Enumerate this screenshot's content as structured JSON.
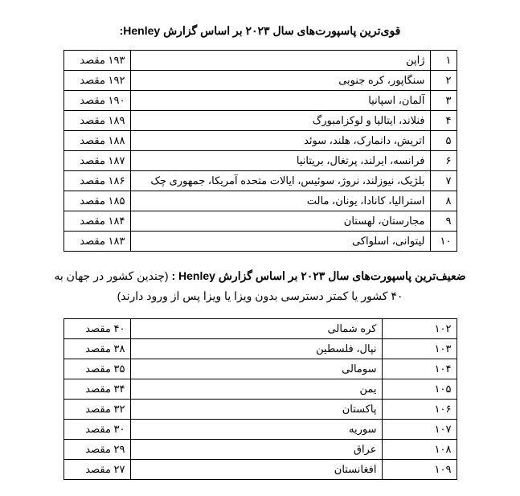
{
  "title_strong": "قوی‌ترین پاسپورت‌های سال ۲۰۲۳ بر اساس گزارش Henley:",
  "title_weak_bold": "ضعیف‌ترین پاسپورت‌های سال ۲۰۲۳ بر اساس گزارش Henley :",
  "title_weak_rest": " (چندین کشور در جهان به ۴۰ کشور یا کمتر دسترسی بدون ویزا یا ویزا پس از ورود دارند)",
  "strong": [
    {
      "rank": "۱",
      "country": "ژاپن",
      "dest": "۱۹۳ مقصد"
    },
    {
      "rank": "۲",
      "country": "سنگاپور، کره جنوبی",
      "dest": "۱۹۲ مقصد"
    },
    {
      "rank": "۳",
      "country": "آلمان، اسپانیا",
      "dest": "۱۹۰ مقصد"
    },
    {
      "rank": "۴",
      "country": "فنلاند، ایتالیا و لوکزامبورگ",
      "dest": "۱۸۹ مقصد"
    },
    {
      "rank": "۵",
      "country": "اتریش، دانمارک، هلند، سوئد",
      "dest": "۱۸۸ مقصد"
    },
    {
      "rank": "۶",
      "country": "فرانسه، ایرلند، پرتغال، بریتانیا",
      "dest": "۱۸۷ مقصد"
    },
    {
      "rank": "۷",
      "country": "بلژیک، نیوزلند، نروژ، سوئیس، ایالات متحده آمریکا، جمهوری چک",
      "dest": "۱۸۶ مقصد"
    },
    {
      "rank": "۸",
      "country": "استرالیا، کانادا، یونان، مالت",
      "dest": "۱۸۵ مقصد"
    },
    {
      "rank": "۹",
      "country": "مجارستان، لهستان",
      "dest": "۱۸۴ مقصد"
    },
    {
      "rank": "۱۰",
      "country": "لیتوانی، اسلواکی",
      "dest": "۱۸۳ مقصد"
    }
  ],
  "weak": [
    {
      "rank": "۱۰۲",
      "country": "کره شمالی",
      "dest": "۴۰ مقصد"
    },
    {
      "rank": "۱۰۳",
      "country": "نپال، فلسطین",
      "dest": "۳۸ مقصد"
    },
    {
      "rank": "۱۰۴",
      "country": "سومالی",
      "dest": "۳۵ مقصد"
    },
    {
      "rank": "۱۰۵",
      "country": "یمن",
      "dest": "۳۴ مقصد"
    },
    {
      "rank": "۱۰۶",
      "country": "پاکستان",
      "dest": "۳۲ مقصد"
    },
    {
      "rank": "۱۰۷",
      "country": "سوریه",
      "dest": "۳۰ مقصد"
    },
    {
      "rank": "۱۰۸",
      "country": "عراق",
      "dest": "۲۹ مقصد"
    },
    {
      "rank": "۱۰۹",
      "country": "افغانستان",
      "dest": "۲۷ مقصد"
    }
  ]
}
